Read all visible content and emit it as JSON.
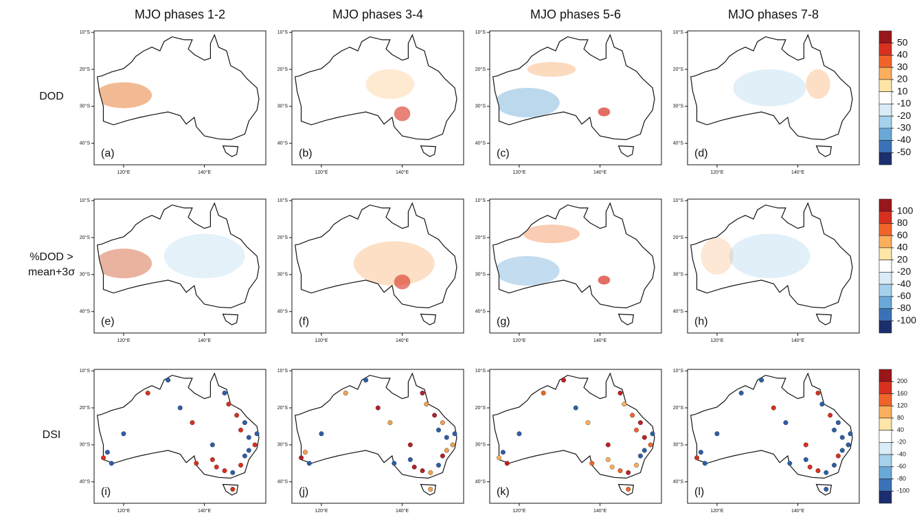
{
  "column_titles": [
    "MJO phases 1-2",
    "MJO phases 3-4",
    "MJO phases 5-6",
    "MJO phases 7-8"
  ],
  "row_labels": [
    [
      "DOD"
    ],
    [
      "%DOD >",
      "mean+3σ"
    ],
    [
      "DSI"
    ]
  ],
  "panel_labels": [
    [
      "(a)",
      "(b)",
      "(c)",
      "(d)"
    ],
    [
      "(e)",
      "(f)",
      "(g)",
      "(h)"
    ],
    [
      "(i)",
      "(j)",
      "(k)",
      "(l)"
    ]
  ],
  "map": {
    "lon_lim": [
      112.7,
      155.2
    ],
    "lat_lim": [
      -9.6,
      -45.8
    ],
    "lat_ticks": [
      {
        "value": -10,
        "label": "10°S"
      },
      {
        "value": -20,
        "label": "20°S"
      },
      {
        "value": -30,
        "label": "30°S"
      },
      {
        "value": -40,
        "label": "40°S"
      }
    ],
    "lon_ticks": [
      {
        "value": 120,
        "label": "120°E"
      },
      {
        "value": 140,
        "label": "140°E"
      }
    ]
  },
  "colorbars": [
    {
      "levels": [
        50,
        40,
        30,
        20,
        10,
        -10,
        -20,
        -30,
        -40,
        -50
      ],
      "colors": [
        "#99161b",
        "#d7301f",
        "#f0642a",
        "#fbae5c",
        "#fee6a8",
        "#ffffff",
        "#d9ecf7",
        "#a6d1ec",
        "#6aa8d8",
        "#3a72b6",
        "#1b2f6e"
      ]
    },
    {
      "levels": [
        100,
        80,
        60,
        40,
        20,
        -20,
        -40,
        -60,
        -80,
        -100
      ],
      "colors": [
        "#99161b",
        "#d7301f",
        "#f0642a",
        "#fbae5c",
        "#fee6a8",
        "#ffffff",
        "#d9ecf7",
        "#a6d1ec",
        "#6aa8d8",
        "#3a72b6",
        "#1b2f6e"
      ]
    },
    {
      "levels": [
        200,
        160,
        120,
        80,
        40,
        -20,
        -40,
        -60,
        -80,
        -100
      ],
      "colors": [
        "#99161b",
        "#d7301f",
        "#f0642a",
        "#fbae5c",
        "#fee6a8",
        "#ffffff",
        "#d9ecf7",
        "#a6d1ec",
        "#6aa8d8",
        "#3a72b6",
        "#1b2f6e"
      ]
    }
  ]
}
